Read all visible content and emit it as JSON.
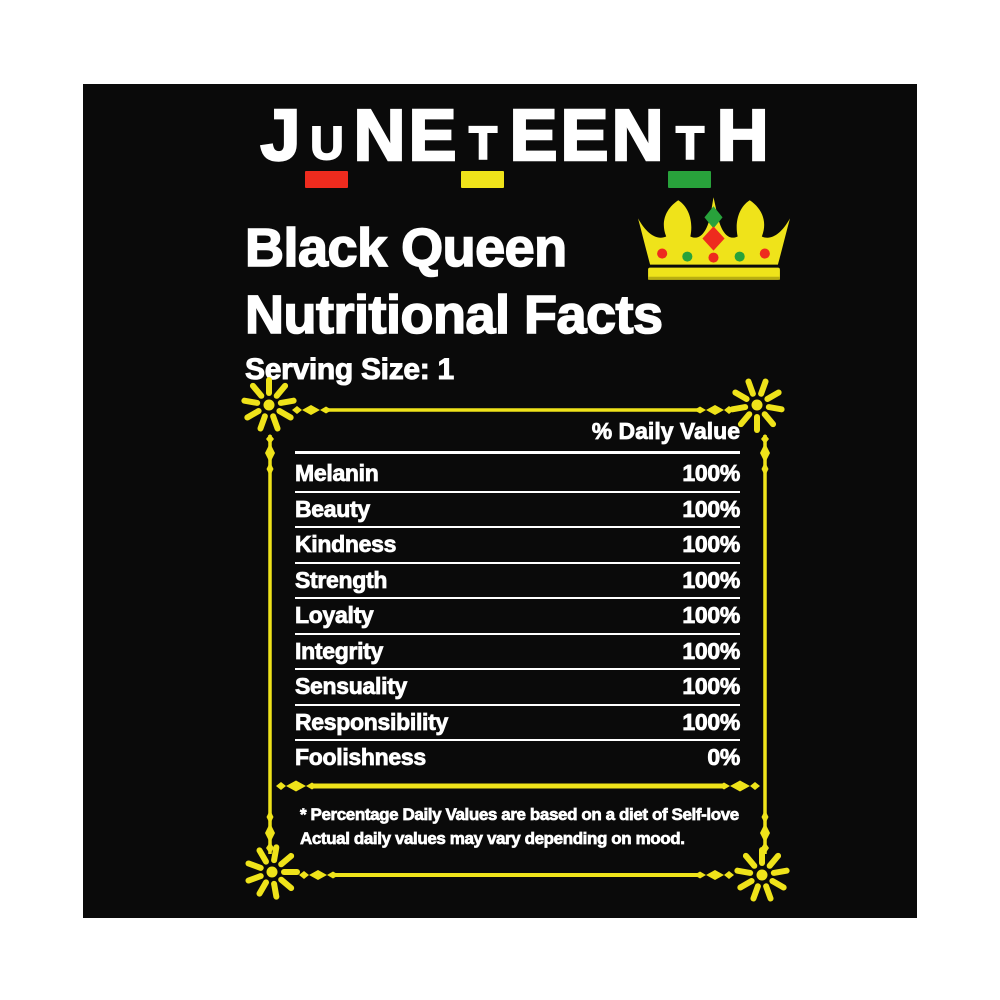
{
  "title": {
    "word": "JUNETEENTH",
    "letters": [
      {
        "ch": "J",
        "accent": null
      },
      {
        "ch": "U",
        "accent": "#ee2b1e"
      },
      {
        "ch": "N",
        "accent": null
      },
      {
        "ch": "E",
        "accent": null
      },
      {
        "ch": "T",
        "accent": "#efe31a"
      },
      {
        "ch": "E",
        "accent": null
      },
      {
        "ch": "E",
        "accent": null
      },
      {
        "ch": "N",
        "accent": null
      },
      {
        "ch": "T",
        "accent": "#28a23b"
      },
      {
        "ch": "H",
        "accent": null
      }
    ]
  },
  "heading": {
    "line1": "Black Queen",
    "line2": "Nutritional Facts"
  },
  "icons": {
    "crown": "crown-icon",
    "flower": "flower-ornament"
  },
  "serving": {
    "label": "Serving Size: 1"
  },
  "table": {
    "header": "% Daily Value",
    "rows": [
      {
        "label": "Melanin",
        "value": "100%"
      },
      {
        "label": "Beauty",
        "value": "100%"
      },
      {
        "label": "Kindness",
        "value": "100%"
      },
      {
        "label": "Strength",
        "value": "100%"
      },
      {
        "label": "Loyalty",
        "value": "100%"
      },
      {
        "label": "Integrity",
        "value": "100%"
      },
      {
        "label": "Sensuality",
        "value": "100%"
      },
      {
        "label": "Responsibility",
        "value": "100%"
      },
      {
        "label": "Foolishness",
        "value": "0%"
      }
    ]
  },
  "footnote": {
    "line1": "* Percentage Daily Values are based on a diet of Self-love",
    "line2": "Actual daily values may vary depending on mood."
  },
  "colors": {
    "yellow": "#efe31a",
    "red": "#ee2b1e",
    "green": "#28a23b",
    "white": "#ffffff",
    "canvas_black": "#0a0a0a",
    "page_background": "#ffffff"
  }
}
